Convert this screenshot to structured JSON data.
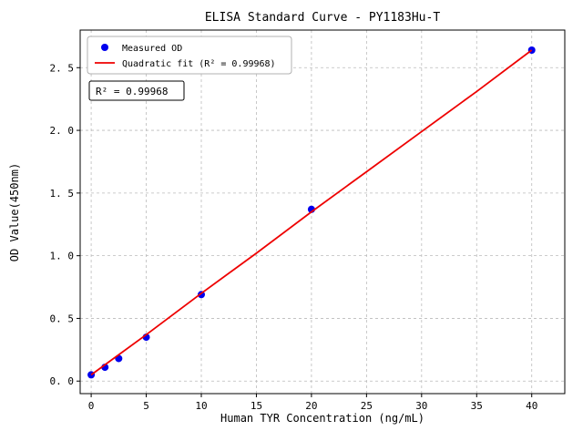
{
  "chart_data": {
    "type": "scatter",
    "title": "ELISA Standard Curve - PY1183Hu-T",
    "xlabel": "Human TYR Concentration (ng/mL)",
    "ylabel": "OD Value(450nm)",
    "xlim": [
      -1,
      43
    ],
    "ylim": [
      -0.1,
      2.8
    ],
    "xticks": [
      0,
      5,
      10,
      15,
      20,
      25,
      30,
      35,
      40
    ],
    "xtick_labels": [
      "0",
      "5",
      "10",
      "15",
      "20",
      "25",
      "30",
      "35",
      "40"
    ],
    "yticks": [
      0.0,
      0.5,
      1.0,
      1.5,
      2.0,
      2.5
    ],
    "ytick_labels": [
      "0. 0",
      "0. 5",
      "1. 0",
      "1. 5",
      "2. 0",
      "2. 5"
    ],
    "grid": true,
    "grid_style": "dashed",
    "grid_color": "#bbbbbb",
    "legend_position": "upper left",
    "series": [
      {
        "name": "Measured OD",
        "type": "scatter",
        "color": "#0000ee",
        "x": [
          0,
          1.25,
          2.5,
          5,
          10,
          20,
          40
        ],
        "y": [
          0.05,
          0.11,
          0.18,
          0.35,
          0.69,
          1.37,
          2.64
        ]
      },
      {
        "name": "Quadratic fit (R² = 0.99968)",
        "type": "line",
        "color": "#ee0000",
        "x": [
          0,
          5,
          10,
          15,
          20,
          25,
          30,
          35,
          40
        ],
        "y": [
          0.05,
          0.37,
          0.7,
          1.02,
          1.35,
          1.67,
          1.99,
          2.31,
          2.64
        ]
      }
    ],
    "annotation": "R² = 0.99968",
    "r_squared": 0.99968
  }
}
